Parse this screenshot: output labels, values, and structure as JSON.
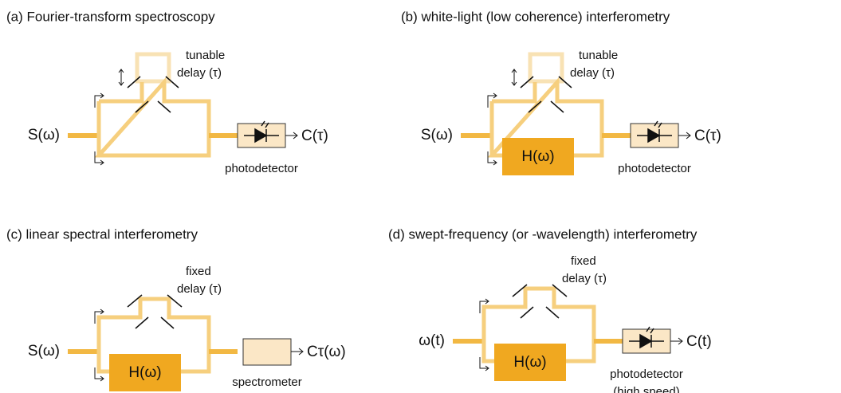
{
  "panels": [
    {
      "title": "(a) Fourier-transform spectroscopy",
      "input": "S(ω)",
      "output": "C(τ)",
      "delay": [
        "tunable",
        "delay (τ)"
      ],
      "receiver": [
        "photodetector"
      ]
    },
    {
      "title": "(b) white-light (low coherence) interferometry",
      "input": "S(ω)",
      "output": "C(τ)",
      "delay": [
        "tunable",
        "delay (τ)"
      ],
      "filter": "H(ω)",
      "receiver": [
        "photodetector"
      ]
    },
    {
      "title": "(c) linear spectral interferometry",
      "input": "S(ω)",
      "output": "Cτ(ω)",
      "delay": [
        "fixed",
        "delay (τ)"
      ],
      "filter": "H(ω)",
      "receiver": [
        "spectrometer"
      ]
    },
    {
      "title": "(d) swept-frequency (or -wavelength) interferometry",
      "input": "ω(t)",
      "output": "C(t)",
      "delay": [
        "fixed",
        "delay (τ)"
      ],
      "filter": "H(ω)",
      "receiver": [
        "photodetector",
        "(high speed)"
      ]
    }
  ]
}
